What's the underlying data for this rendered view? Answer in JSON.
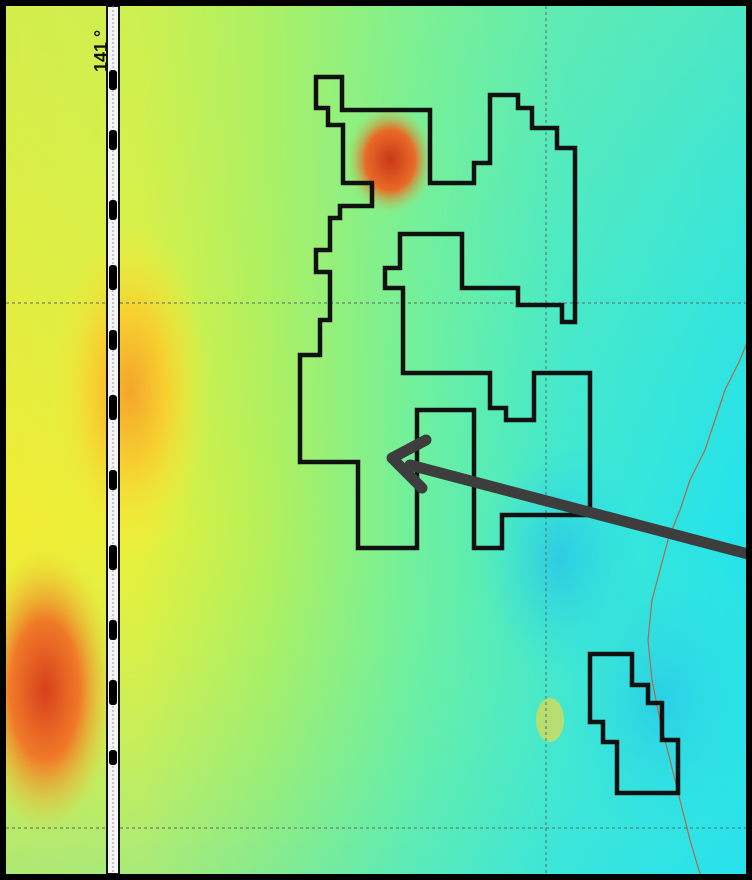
{
  "map": {
    "graticule_label": "141 °",
    "colors": {
      "frame": "#000000",
      "outline": "#111111",
      "arrow": "#3d3d3d",
      "background_cyan": "#2ee6ef",
      "background_green": "#7cf29a",
      "background_yellow": "#f7f23a",
      "anomaly_orange": "#f59a2a",
      "anomaly_red": "#d63a1a",
      "grid_line": "#5a6a6a",
      "road_line": "#b06a4a"
    },
    "icons": {
      "arrow": "pointer-arrow-icon",
      "scale_bar": "longitude-scale-bar"
    }
  }
}
